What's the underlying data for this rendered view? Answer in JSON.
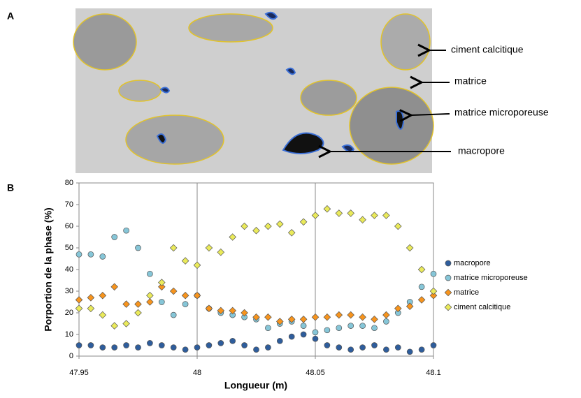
{
  "panel_a": {
    "label": "A",
    "annotations": [
      "ciment calcitique",
      "matrice",
      "matrice microporeuse",
      "macropore"
    ]
  },
  "chart_data": {
    "type": "scatter",
    "panel_label": "B",
    "xlabel": "Longueur (m)",
    "ylabel": "Porportion de la phase (%)",
    "xlim": [
      47.95,
      48.1
    ],
    "xticks": [
      47.95,
      48,
      48.05,
      48.1
    ],
    "ylim": [
      0,
      80
    ],
    "yticks": [
      0,
      10,
      20,
      30,
      40,
      50,
      60,
      70,
      80
    ],
    "grid": "x",
    "legend": "right",
    "x": [
      47.95,
      47.955,
      47.96,
      47.965,
      47.97,
      47.975,
      47.98,
      47.985,
      47.99,
      47.995,
      48,
      48.005,
      48.01,
      48.015,
      48.02,
      48.025,
      48.03,
      48.035,
      48.04,
      48.045,
      48.05,
      48.055,
      48.06,
      48.065,
      48.07,
      48.075,
      48.08,
      48.085,
      48.09,
      48.095,
      48.1
    ],
    "series": [
      {
        "name": "macropore",
        "color": "#2e5d9c",
        "marker": "circle",
        "values": [
          5,
          5,
          4,
          4,
          5,
          4,
          6,
          5,
          4,
          3,
          4,
          5,
          6,
          7,
          5,
          3,
          4,
          7,
          9,
          10,
          8,
          5,
          4,
          3,
          4,
          5,
          3,
          4,
          2,
          3,
          5
        ]
      },
      {
        "name": "matrice microporeuse",
        "color": "#86c6d8",
        "marker": "circle",
        "values": [
          47,
          47,
          46,
          55,
          58,
          50,
          38,
          25,
          19,
          24,
          28,
          22,
          20,
          19,
          18,
          17,
          13,
          15,
          16,
          14,
          11,
          12,
          13,
          14,
          14,
          13,
          16,
          20,
          25,
          32,
          38
        ]
      },
      {
        "name": "matrice",
        "color": "#f7941d",
        "marker": "diamond",
        "values": [
          26,
          27,
          28,
          32,
          24,
          24,
          25,
          32,
          30,
          28,
          28,
          22,
          21,
          21,
          20,
          18,
          18,
          16,
          17,
          17,
          18,
          18,
          19,
          19,
          18,
          17,
          19,
          22,
          23,
          26,
          28
        ]
      },
      {
        "name": "ciment calcitique",
        "color": "#eaea5a",
        "marker": "diamond",
        "values": [
          22,
          22,
          19,
          14,
          15,
          20,
          28,
          34,
          50,
          44,
          42,
          50,
          48,
          55,
          60,
          58,
          60,
          61,
          57,
          62,
          65,
          68,
          66,
          66,
          63,
          65,
          65,
          60,
          50,
          40,
          30
        ]
      }
    ]
  }
}
